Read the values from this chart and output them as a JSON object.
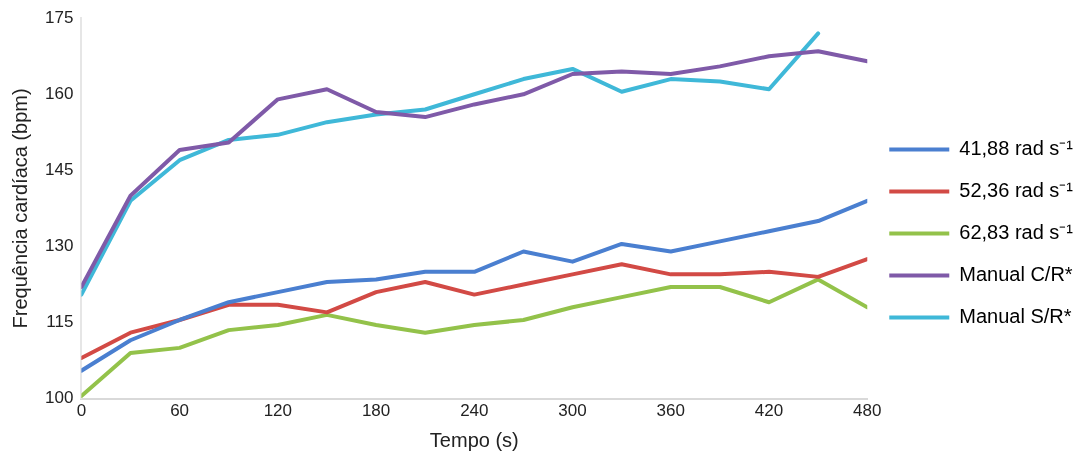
{
  "chart_data": {
    "type": "line",
    "xlabel": "Tempo (s)",
    "ylabel": "Frequência cardíaca (bpm)",
    "x": [
      0,
      30,
      60,
      90,
      120,
      150,
      180,
      210,
      240,
      270,
      300,
      330,
      360,
      390,
      420,
      450,
      480
    ],
    "xlim": [
      0,
      480
    ],
    "xticks": [
      0,
      60,
      120,
      180,
      240,
      300,
      360,
      420,
      480
    ],
    "ylim": [
      100,
      175
    ],
    "yticks": [
      100,
      115,
      130,
      145,
      160,
      175
    ],
    "grid": false,
    "legend": "right",
    "marker": "none",
    "line_style": "solid",
    "series": [
      {
        "name": "41,88 rad s⁻¹",
        "color": "#4a7fd0",
        "values": [
          105.5,
          111.5,
          115.5,
          119,
          121,
          123,
          123.5,
          125,
          125,
          129,
          127,
          130.5,
          129,
          131,
          133,
          135,
          139
        ]
      },
      {
        "name": "52,36 rad s⁻¹",
        "color": "#d24a45",
        "values": [
          108,
          113,
          115.5,
          118.5,
          118.5,
          117,
          121,
          123,
          120.5,
          122.5,
          124.5,
          126.5,
          124.5,
          124.5,
          125,
          124,
          127.5
        ]
      },
      {
        "name": "62,83 rad s⁻¹",
        "color": "#93c24a",
        "values": [
          100.5,
          109,
          110,
          113.5,
          114.5,
          116.5,
          114.5,
          113,
          114.5,
          115.5,
          118,
          120,
          122,
          122,
          119,
          123.5,
          118
        ]
      },
      {
        "name": "Manual C/R*",
        "color": "#7f5aa8",
        "values": [
          122,
          140,
          149,
          150.5,
          159,
          161,
          156.5,
          155.5,
          158,
          160,
          164,
          164.5,
          164,
          165.5,
          167.5,
          168.5,
          166.5
        ]
      },
      {
        "name": "Manual S/R*",
        "color": "#3fb8d8",
        "values": [
          120.5,
          139,
          147,
          151,
          152,
          154.5,
          156,
          157,
          160,
          163,
          165,
          160.5,
          163,
          162.5,
          161,
          172,
          null
        ]
      }
    ]
  }
}
